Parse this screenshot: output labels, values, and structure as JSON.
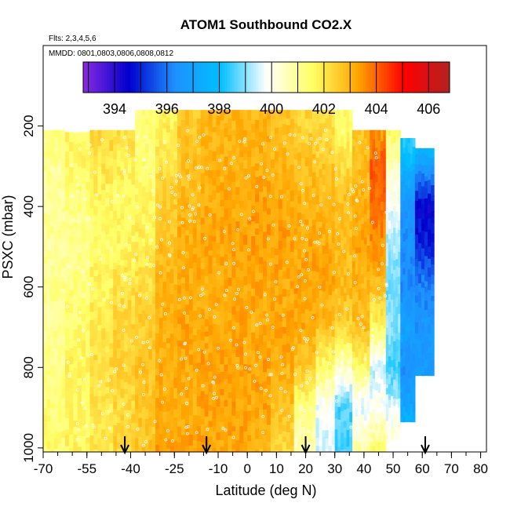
{
  "chart_data": {
    "type": "heatmap",
    "title": "ATOM1 Southbound CO2.X",
    "subtitle_flights": "Flts: 2,3,4,5,6",
    "subtitle_dates": "MMDD: 0801,0803,0806,0808,0812",
    "xlabel": "Latitude (deg N)",
    "ylabel": "PSXC (mbar)",
    "xlim": [
      -70,
      82
    ],
    "ylim": [
      1010,
      0
    ],
    "x_ticks": [
      -70,
      -55,
      -40,
      -25,
      -10,
      0,
      10,
      20,
      30,
      40,
      50,
      60,
      70,
      80
    ],
    "y_ticks": [
      200,
      400,
      600,
      800,
      1000
    ],
    "colorbar": {
      "min": 392.8,
      "max": 406.8,
      "ticks": [
        394,
        396,
        398,
        400,
        402,
        404,
        406
      ],
      "colors": [
        "#8a2be2",
        "#0000cd",
        "#1e90ff",
        "#00bfff",
        "#ffffff",
        "#ffff66",
        "#ffa500",
        "#ff0000",
        "#b22222"
      ]
    },
    "arrow_latitudes": [
      -42,
      -14,
      20,
      61
    ],
    "profiles": [
      {
        "lat": -67,
        "top": 210,
        "bottom": 1010,
        "values": [
          401.2,
          401.0,
          400.9,
          401.0,
          401.1,
          401.0,
          401.2,
          401.4,
          401.5
        ]
      },
      {
        "lat": -58,
        "top": 215,
        "bottom": 1010,
        "values": [
          401.6,
          401.6,
          401.3,
          401.1,
          401.3,
          401.5,
          401.8,
          401.6,
          401.7
        ]
      },
      {
        "lat": -50,
        "top": 210,
        "bottom": 1010,
        "values": [
          402.4,
          402.0,
          401.6,
          401.5,
          401.8,
          402.0,
          402.3,
          402.0,
          402.1
        ]
      },
      {
        "lat": -42,
        "top": 210,
        "bottom": 1010,
        "values": [
          402.2,
          401.8,
          401.6,
          401.7,
          402.1,
          402.4,
          402.4,
          402.3,
          402.4
        ]
      },
      {
        "lat": -35,
        "top": 160,
        "bottom": 1010,
        "values": [
          401.3,
          401.4,
          401.6,
          401.9,
          402.2,
          402.5,
          402.7,
          402.6,
          402.7
        ]
      },
      {
        "lat": -28,
        "top": 160,
        "bottom": 1010,
        "values": [
          401.8,
          402.2,
          402.6,
          402.8,
          403.0,
          403.0,
          403.1,
          403.1,
          403.3
        ]
      },
      {
        "lat": -20,
        "top": 160,
        "bottom": 1010,
        "values": [
          402.6,
          402.8,
          402.9,
          403.1,
          403.1,
          403.2,
          403.2,
          403.1,
          403.3
        ]
      },
      {
        "lat": -12,
        "top": 160,
        "bottom": 1010,
        "values": [
          403.0,
          403.0,
          403.1,
          403.2,
          403.1,
          403.2,
          403.3,
          403.2,
          403.3
        ]
      },
      {
        "lat": -4,
        "top": 160,
        "bottom": 1010,
        "values": [
          403.0,
          403.1,
          403.2,
          403.3,
          403.2,
          403.2,
          403.3,
          403.3,
          403.2
        ]
      },
      {
        "lat": 4,
        "top": 160,
        "bottom": 1010,
        "values": [
          403.0,
          403.1,
          403.3,
          403.3,
          403.2,
          403.1,
          403.3,
          403.2,
          403.0
        ]
      },
      {
        "lat": 12,
        "top": 160,
        "bottom": 1010,
        "values": [
          402.7,
          403.0,
          403.2,
          403.3,
          403.2,
          403.2,
          403.1,
          402.8,
          402.3
        ]
      },
      {
        "lat": 20,
        "top": 160,
        "bottom": 1010,
        "values": [
          402.4,
          402.8,
          403.0,
          403.2,
          403.3,
          403.2,
          402.6,
          401.3,
          400.6
        ]
      },
      {
        "lat": 27,
        "top": 160,
        "bottom": 1010,
        "values": [
          402.2,
          402.6,
          402.9,
          403.1,
          403.2,
          402.8,
          401.4,
          399.8,
          399.5
        ]
      },
      {
        "lat": 33,
        "top": 160,
        "bottom": 1010,
        "values": [
          401.5,
          402.2,
          402.8,
          402.8,
          402.9,
          402.4,
          400.4,
          398.6,
          398.5
        ]
      },
      {
        "lat": 39,
        "top": 210,
        "bottom": 1010,
        "values": [
          402.7,
          402.8,
          403.1,
          403.2,
          403.0,
          402.8,
          401.5,
          399.6,
          400.8
        ]
      },
      {
        "lat": 45,
        "top": 210,
        "bottom": 1010,
        "values": [
          403.2,
          404.2,
          403.8,
          403.5,
          402.8,
          401.6,
          399.4,
          400.0,
          401.5
        ]
      },
      {
        "lat": 50,
        "top": 210,
        "bottom": 980,
        "values": [
          401.9,
          400.5,
          399.8,
          399.2,
          398.8,
          399.0,
          398.4,
          399.6,
          400.4
        ]
      },
      {
        "lat": 55,
        "top": 230,
        "bottom": 935,
        "values": [
          398.6,
          397.7,
          396.5,
          396.4,
          396.3,
          397.0,
          396.4,
          397.2,
          397.8
        ]
      },
      {
        "lat": 60,
        "top": 255,
        "bottom": 820,
        "values": [
          398.6,
          396.8,
          394.5,
          395.0,
          396.2,
          396.5,
          396.8,
          397.2,
          397.4
        ]
      }
    ]
  }
}
